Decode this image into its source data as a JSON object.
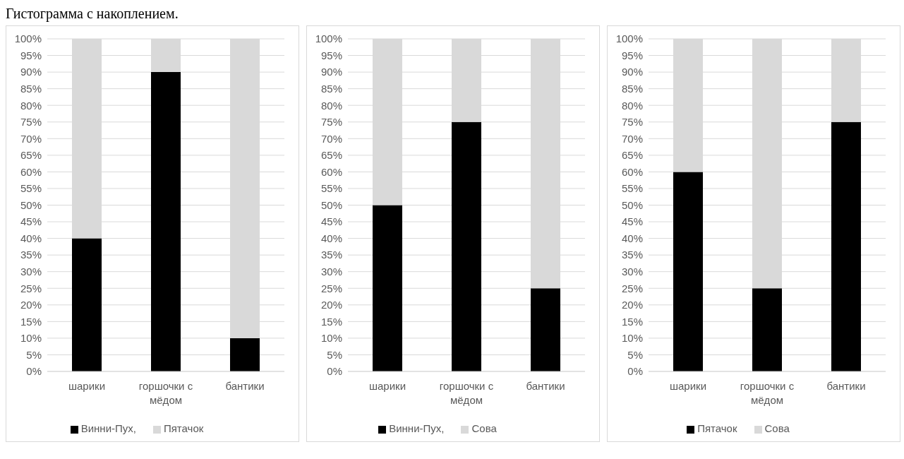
{
  "chart_data": [
    {
      "type": "bar",
      "title": "Гистограмма с накоплением.",
      "stacked": true,
      "categories": [
        "шарики",
        "горшочки с мёдом",
        "бантики"
      ],
      "series": [
        {
          "name": "Винни-Пух,",
          "color": "#000000",
          "values": [
            40,
            90,
            10
          ]
        },
        {
          "name": "Пятачок",
          "color": "#d9d9d9",
          "values": [
            60,
            10,
            90
          ]
        }
      ],
      "ylim": [
        0,
        100
      ],
      "yticks": [
        {
          "value": 0,
          "label": "0%"
        },
        {
          "value": 5,
          "label": "5%"
        },
        {
          "value": 10,
          "label": "10%"
        },
        {
          "value": 15,
          "label": "15%"
        },
        {
          "value": 20,
          "label": "20%"
        },
        {
          "value": 25,
          "label": "25%"
        },
        {
          "value": 30,
          "label": "30%"
        },
        {
          "value": 35,
          "label": "35%"
        },
        {
          "value": 40,
          "label": "40%"
        },
        {
          "value": 45,
          "label": "45%"
        },
        {
          "value": 50,
          "label": "50%"
        },
        {
          "value": 55,
          "label": "55%"
        },
        {
          "value": 60,
          "label": "60%"
        },
        {
          "value": 65,
          "label": "65%"
        },
        {
          "value": 70,
          "label": "70%"
        },
        {
          "value": 75,
          "label": "75%"
        },
        {
          "value": 80,
          "label": "80%"
        },
        {
          "value": 85,
          "label": "85%"
        },
        {
          "value": 90,
          "label": "90%"
        },
        {
          "value": 95,
          "label": "95%"
        },
        {
          "value": 100,
          "label": "100%"
        }
      ],
      "grid": "y",
      "legend": "bottom"
    },
    {
      "type": "bar",
      "stacked": true,
      "categories": [
        "шарики",
        "горшочки с мёдом",
        "бантики"
      ],
      "series": [
        {
          "name": "Винни-Пух,",
          "color": "#000000",
          "values": [
            50,
            75,
            25
          ]
        },
        {
          "name": "Сова",
          "color": "#d9d9d9",
          "values": [
            50,
            25,
            75
          ]
        }
      ],
      "ylim": [
        0,
        100
      ],
      "yticks": [
        {
          "value": 0,
          "label": "0%"
        },
        {
          "value": 5,
          "label": "5%"
        },
        {
          "value": 10,
          "label": "10%"
        },
        {
          "value": 15,
          "label": "15%"
        },
        {
          "value": 20,
          "label": "20%"
        },
        {
          "value": 25,
          "label": "25%"
        },
        {
          "value": 30,
          "label": "30%"
        },
        {
          "value": 35,
          "label": "35%"
        },
        {
          "value": 40,
          "label": "40%"
        },
        {
          "value": 45,
          "label": "45%"
        },
        {
          "value": 50,
          "label": "50%"
        },
        {
          "value": 55,
          "label": "55%"
        },
        {
          "value": 60,
          "label": "60%"
        },
        {
          "value": 65,
          "label": "65%"
        },
        {
          "value": 70,
          "label": "70%"
        },
        {
          "value": 75,
          "label": "75%"
        },
        {
          "value": 80,
          "label": "80%"
        },
        {
          "value": 85,
          "label": "85%"
        },
        {
          "value": 90,
          "label": "90%"
        },
        {
          "value": 95,
          "label": "95%"
        },
        {
          "value": 100,
          "label": "100%"
        }
      ],
      "grid": "y",
      "legend": "bottom"
    },
    {
      "type": "bar",
      "stacked": true,
      "categories": [
        "шарики",
        "горшочки с мёдом",
        "бантики"
      ],
      "series": [
        {
          "name": "Пятачок",
          "color": "#000000",
          "values": [
            60,
            25,
            75
          ]
        },
        {
          "name": "Сова",
          "color": "#d9d9d9",
          "values": [
            40,
            75,
            25
          ]
        }
      ],
      "ylim": [
        0,
        100
      ],
      "yticks": [
        {
          "value": 0,
          "label": "0%"
        },
        {
          "value": 5,
          "label": "5%"
        },
        {
          "value": 10,
          "label": "10%"
        },
        {
          "value": 15,
          "label": "15%"
        },
        {
          "value": 20,
          "label": "20%"
        },
        {
          "value": 25,
          "label": "25%"
        },
        {
          "value": 30,
          "label": "30%"
        },
        {
          "value": 35,
          "label": "35%"
        },
        {
          "value": 40,
          "label": "40%"
        },
        {
          "value": 45,
          "label": "45%"
        },
        {
          "value": 50,
          "label": "50%"
        },
        {
          "value": 55,
          "label": "55%"
        },
        {
          "value": 60,
          "label": "60%"
        },
        {
          "value": 65,
          "label": "65%"
        },
        {
          "value": 70,
          "label": "70%"
        },
        {
          "value": 75,
          "label": "75%"
        },
        {
          "value": 80,
          "label": "80%"
        },
        {
          "value": 85,
          "label": "85%"
        },
        {
          "value": 90,
          "label": "90%"
        },
        {
          "value": 95,
          "label": "95%"
        },
        {
          "value": 100,
          "label": "100%"
        }
      ],
      "grid": "y",
      "legend": "bottom"
    }
  ]
}
